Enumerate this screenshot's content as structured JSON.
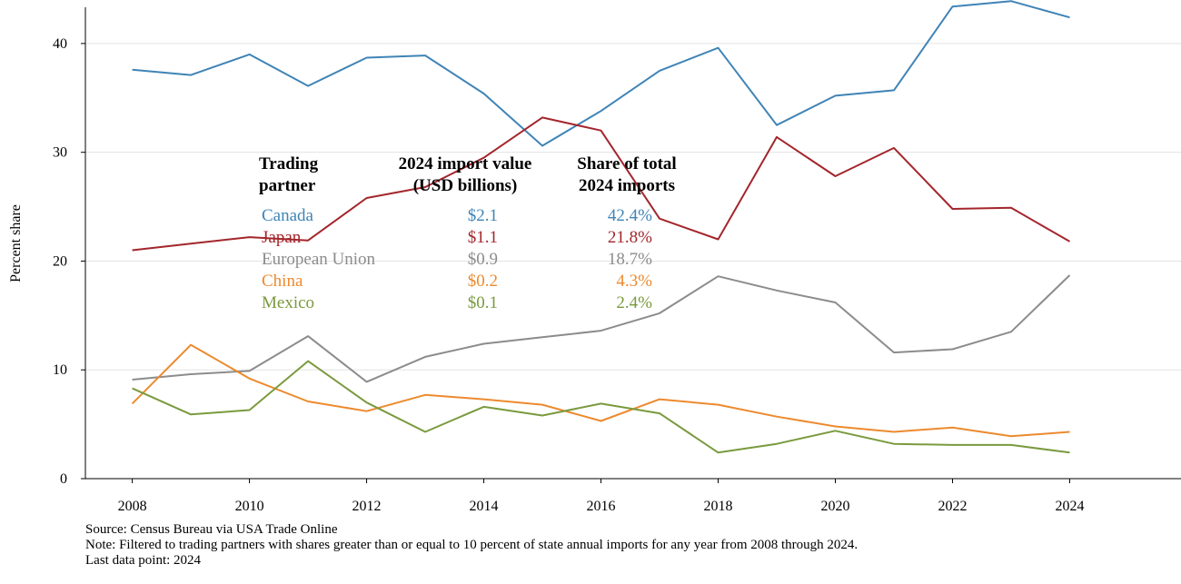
{
  "chart_data": {
    "type": "line",
    "ylabel": "Percent share",
    "ylim": [
      0,
      44
    ],
    "yticks": [
      0,
      10,
      20,
      30,
      40
    ],
    "xlim": [
      2007.2,
      2025.9
    ],
    "xticks": [
      2008,
      2010,
      2012,
      2014,
      2016,
      2018,
      2020,
      2022,
      2024
    ],
    "grid": "horizontal",
    "x": [
      2008,
      2009,
      2010,
      2011,
      2012,
      2013,
      2014,
      2015,
      2016,
      2017,
      2018,
      2019,
      2020,
      2021,
      2022,
      2023,
      2024
    ],
    "series": [
      {
        "name": "Canada",
        "color": "#3f84b6",
        "values": [
          37.6,
          37.1,
          39.0,
          36.1,
          38.7,
          38.9,
          35.4,
          30.6,
          33.8,
          37.5,
          39.6,
          32.5,
          35.2,
          35.7,
          43.4,
          43.9,
          42.4
        ]
      },
      {
        "name": "Japan",
        "color": "#a3262c",
        "values": [
          21.0,
          21.6,
          22.2,
          21.9,
          25.8,
          26.8,
          29.5,
          33.2,
          32.0,
          23.9,
          22.0,
          31.4,
          27.8,
          30.4,
          24.8,
          24.9,
          21.8
        ]
      },
      {
        "name": "European Union",
        "color": "#8c8c8c",
        "values": [
          9.1,
          9.6,
          9.9,
          13.1,
          8.9,
          11.2,
          12.4,
          13.0,
          13.6,
          15.2,
          18.6,
          17.3,
          16.2,
          11.6,
          11.9,
          13.5,
          18.7
        ]
      },
      {
        "name": "China",
        "color": "#ec8a2e",
        "values": [
          6.9,
          12.3,
          9.2,
          7.1,
          6.2,
          7.7,
          7.3,
          6.8,
          5.3,
          7.3,
          6.8,
          5.7,
          4.8,
          4.3,
          4.7,
          3.9,
          4.3
        ]
      },
      {
        "name": "Mexico",
        "color": "#7a9a3e",
        "values": [
          8.3,
          5.9,
          6.3,
          10.8,
          7.0,
          4.3,
          6.6,
          5.8,
          6.9,
          6.0,
          2.4,
          3.2,
          4.4,
          3.2,
          3.1,
          3.1,
          2.4
        ]
      }
    ],
    "annotations": {
      "headers": [
        [
          "Trading",
          "partner"
        ],
        [
          "2024 import value",
          "(USD billions)"
        ],
        [
          "Share of total",
          "2024 imports"
        ]
      ],
      "rows": [
        {
          "partner": "Canada",
          "value": "$2.1",
          "share": "42.4%",
          "color": "#3f84b6"
        },
        {
          "partner": "Japan",
          "value": "$1.1",
          "share": "21.8%",
          "color": "#a3262c"
        },
        {
          "partner": "European Union",
          "value": "$0.9",
          "share": "18.7%",
          "color": "#8c8c8c"
        },
        {
          "partner": "China",
          "value": "$0.2",
          "share": "4.3%",
          "color": "#ec8a2e"
        },
        {
          "partner": "Mexico",
          "value": "$0.1",
          "share": "2.4%",
          "color": "#7a9a3e"
        }
      ]
    }
  },
  "footer": {
    "source": "Source: Census Bureau via USA Trade Online",
    "note": "Note: Filtered to trading partners with shares greater than or equal to 10 percent of state annual imports for any year from 2008 through 2024.",
    "last_point": "Last data point: 2024"
  }
}
